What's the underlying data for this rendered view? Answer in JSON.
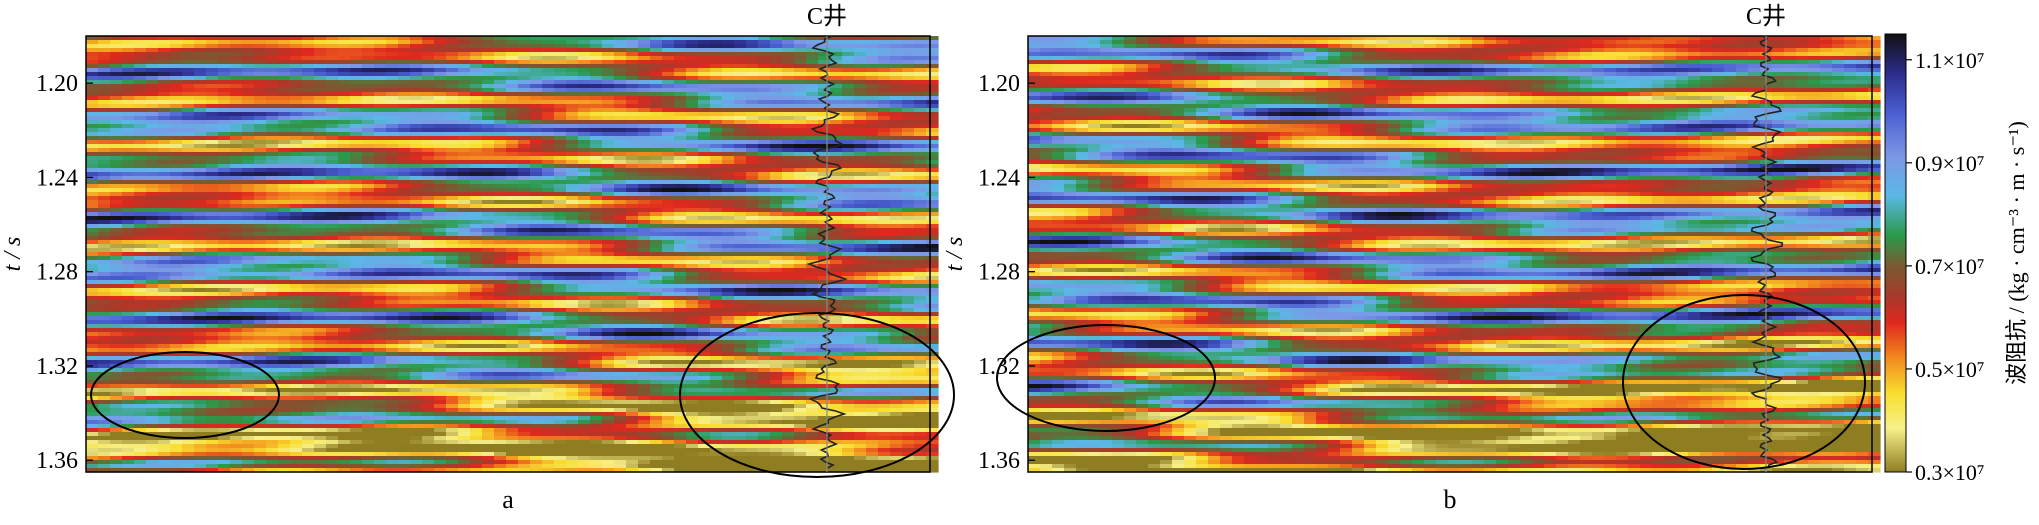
{
  "chart_data": [
    {
      "type": "heatmap",
      "panel_label": "a",
      "well_label": "C井",
      "ylabel": "t / s",
      "ylim": [
        1.18,
        1.365
      ],
      "y_ticks": [
        1.2,
        1.24,
        1.28,
        1.32,
        1.36
      ],
      "y_tick_labels": [
        "1.20",
        "1.24",
        "1.28",
        "1.32",
        "1.36"
      ],
      "highlighted_regions": [
        {
          "t_center": 1.333,
          "description": "left ellipse"
        },
        {
          "t_center": 1.333,
          "description": "right ellipse around well C"
        }
      ]
    },
    {
      "type": "heatmap",
      "panel_label": "b",
      "well_label": "C井",
      "ylabel": "t / s",
      "ylim": [
        1.18,
        1.365
      ],
      "y_ticks": [
        1.2,
        1.24,
        1.28,
        1.32,
        1.36
      ],
      "y_tick_labels": [
        "1.20",
        "1.24",
        "1.28",
        "1.32",
        "1.36"
      ],
      "highlighted_regions": [
        {
          "t_center": 1.327,
          "description": "left ellipse"
        },
        {
          "t_center": 1.331,
          "description": "right ellipse around well C"
        }
      ]
    }
  ],
  "colorbar": {
    "label": "波阻抗 / (kg · cm⁻³ · m · s⁻¹)",
    "ticks": [
      11000000,
      9000000,
      7000000,
      5000000,
      3000000
    ],
    "tick_labels": [
      "1.1×10⁷",
      "0.9×10⁷",
      "0.7×10⁷",
      "0.5×10⁷",
      "0.3×10⁷"
    ],
    "range": [
      3000000,
      11500000
    ],
    "stops": [
      "#111111",
      "#2c2c8c",
      "#4a5fd0",
      "#7d97e6",
      "#5ab8e6",
      "#2a9a4a",
      "#7a5a32",
      "#a83a2a",
      "#e0281e",
      "#f28a1e",
      "#f8de2e",
      "#f7f08a",
      "#8f7d22"
    ]
  }
}
